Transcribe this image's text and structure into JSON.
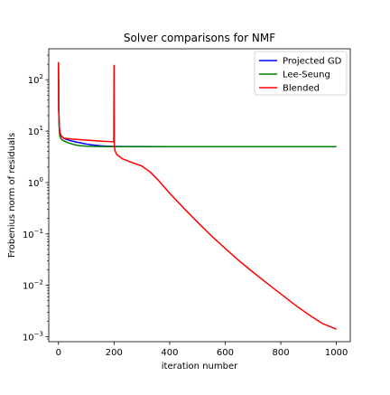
{
  "chart_data": {
    "type": "line",
    "title": "Solver comparisons for NMF",
    "xlabel": "iteration number",
    "ylabel": "Frobenius norm of residuals",
    "xlim": [
      -35,
      1050
    ],
    "ylim": [
      0.0008,
      400
    ],
    "yscale": "log",
    "grid": false,
    "legend_position": "top-right",
    "x_ticks": [
      {
        "value": 0,
        "label": "0"
      },
      {
        "value": 200,
        "label": "200"
      },
      {
        "value": 400,
        "label": "400"
      },
      {
        "value": 600,
        "label": "600"
      },
      {
        "value": 800,
        "label": "800"
      },
      {
        "value": 1000,
        "label": "1000"
      }
    ],
    "y_ticks": [
      {
        "value": 0.001,
        "base": "10",
        "exp": "−3"
      },
      {
        "value": 0.01,
        "base": "10",
        "exp": "−2"
      },
      {
        "value": 0.1,
        "base": "10",
        "exp": "−1"
      },
      {
        "value": 1,
        "base": "10",
        "exp": "0"
      },
      {
        "value": 10,
        "base": "10",
        "exp": "1"
      },
      {
        "value": 100,
        "base": "10",
        "exp": "2"
      }
    ],
    "series": [
      {
        "name": "Projected GD",
        "color": "#0000ff",
        "x": [
          0,
          1,
          3,
          5,
          10,
          20,
          40,
          60,
          80,
          100,
          120,
          150,
          180,
          200,
          250,
          300,
          400,
          500,
          600,
          700,
          800,
          900,
          1000
        ],
        "y": [
          220,
          30,
          12,
          9.5,
          8.0,
          7.2,
          6.6,
          6.2,
          5.9,
          5.6,
          5.4,
          5.2,
          5.1,
          5.05,
          5.02,
          5.01,
          5.0,
          5.0,
          5.0,
          5.0,
          5.0,
          5.0,
          5.0
        ]
      },
      {
        "name": "Lee-Seung",
        "color": "#008000",
        "x": [
          0,
          1,
          3,
          5,
          10,
          20,
          40,
          60,
          80,
          100,
          130,
          160,
          200,
          300,
          400,
          500,
          600,
          700,
          800,
          900,
          1000
        ],
        "y": [
          220,
          25,
          10,
          8.0,
          7.0,
          6.4,
          5.8,
          5.4,
          5.2,
          5.1,
          5.05,
          5.02,
          5.0,
          5.0,
          5.0,
          5.0,
          5.0,
          5.0,
          5.0,
          5.0,
          5.0
        ]
      },
      {
        "name": "Blended",
        "color": "#ff0000",
        "x": [
          0,
          1,
          3,
          5,
          10,
          20,
          50,
          100,
          150,
          199,
          200,
          201,
          203,
          210,
          230,
          260,
          300,
          330,
          360,
          400,
          450,
          500,
          550,
          600,
          650,
          700,
          750,
          800,
          850,
          900,
          950,
          1000
        ],
        "y": [
          220,
          25,
          12,
          9.5,
          8.0,
          7.3,
          7.0,
          6.7,
          6.4,
          6.2,
          190,
          5.0,
          4.2,
          3.5,
          2.9,
          2.5,
          2.1,
          1.6,
          1.1,
          0.62,
          0.32,
          0.17,
          0.092,
          0.052,
          0.03,
          0.018,
          0.011,
          0.0068,
          0.0042,
          0.0027,
          0.0018,
          0.0014
        ]
      }
    ]
  }
}
